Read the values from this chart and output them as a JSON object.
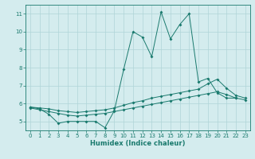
{
  "xlabel": "Humidex (Indice chaleur)",
  "x": [
    0,
    1,
    2,
    3,
    4,
    5,
    6,
    7,
    8,
    9,
    10,
    11,
    12,
    13,
    14,
    15,
    16,
    17,
    18,
    19,
    20,
    21,
    22,
    23
  ],
  "line1": [
    5.8,
    5.7,
    5.4,
    4.9,
    5.0,
    5.0,
    5.0,
    5.0,
    4.65,
    5.6,
    7.9,
    10.0,
    9.7,
    8.6,
    11.1,
    9.6,
    10.4,
    11.0,
    7.2,
    7.4,
    6.6,
    6.3,
    6.3,
    null
  ],
  "line2": [
    5.8,
    5.75,
    5.7,
    5.6,
    5.55,
    5.5,
    5.55,
    5.6,
    5.65,
    5.75,
    5.9,
    6.05,
    6.15,
    6.3,
    6.4,
    6.5,
    6.6,
    6.7,
    6.8,
    7.1,
    7.35,
    6.85,
    6.45,
    6.3
  ],
  "line3": [
    5.75,
    5.65,
    5.55,
    5.45,
    5.35,
    5.3,
    5.35,
    5.4,
    5.45,
    5.55,
    5.65,
    5.75,
    5.85,
    5.95,
    6.05,
    6.15,
    6.25,
    6.35,
    6.45,
    6.55,
    6.65,
    6.5,
    6.3,
    6.2
  ],
  "line_color": "#1a7a6e",
  "bg_color": "#d4ecee",
  "grid_color": "#afd4d8",
  "ylim": [
    4.5,
    11.5
  ],
  "xlim": [
    -0.5,
    23.5
  ],
  "yticks": [
    5,
    6,
    7,
    8,
    9,
    10,
    11
  ],
  "xticks": [
    0,
    1,
    2,
    3,
    4,
    5,
    6,
    7,
    8,
    9,
    10,
    11,
    12,
    13,
    14,
    15,
    16,
    17,
    18,
    19,
    20,
    21,
    22,
    23
  ]
}
